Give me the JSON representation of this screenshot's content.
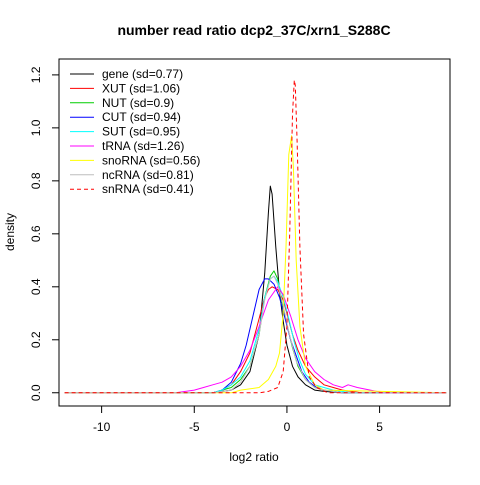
{
  "chart_data": {
    "type": "line",
    "title": "number read ratio dcp2_37C/xrn1_S288C",
    "xlabel": "log2 ratio",
    "ylabel": "density",
    "xlim": [
      -12.3,
      8.8
    ],
    "ylim": [
      -0.05,
      1.26
    ],
    "x_ticks": [
      -10,
      -5,
      0,
      5
    ],
    "x_tick_labels": [
      "-10",
      "-5",
      "0",
      "5"
    ],
    "y_ticks": [
      0.0,
      0.2,
      0.4,
      0.6,
      0.8,
      1.0,
      1.2
    ],
    "y_tick_labels": [
      "0.0",
      "0.2",
      "0.4",
      "0.6",
      "0.8",
      "1.0",
      "1.2"
    ],
    "grid": false,
    "legend_position": "top-left",
    "series": [
      {
        "name": "gene (sd=0.77)",
        "color": "#000000",
        "dash": "solid",
        "x": [
          -12,
          -4,
          -3,
          -2.5,
          -2,
          -1.5,
          -1.2,
          -1.0,
          -0.9,
          -0.8,
          -0.6,
          -0.4,
          -0.2,
          0.0,
          0.3,
          0.6,
          1.0,
          1.5,
          2.0,
          3,
          4,
          8.6
        ],
        "y": [
          0,
          0,
          0.01,
          0.03,
          0.08,
          0.22,
          0.45,
          0.68,
          0.78,
          0.75,
          0.55,
          0.38,
          0.27,
          0.18,
          0.1,
          0.06,
          0.03,
          0.01,
          0.005,
          0,
          0,
          0
        ]
      },
      {
        "name": "XUT (sd=1.06)",
        "color": "#ff0000",
        "dash": "solid",
        "x": [
          -12,
          -4,
          -3.5,
          -3,
          -2.5,
          -2,
          -1.5,
          -1.2,
          -1.0,
          -0.8,
          -0.5,
          -0.2,
          0.0,
          0.3,
          0.6,
          1.0,
          1.5,
          2.0,
          2.5,
          3.0,
          4,
          8.6
        ],
        "y": [
          0,
          0,
          0.01,
          0.03,
          0.08,
          0.15,
          0.28,
          0.36,
          0.39,
          0.4,
          0.39,
          0.35,
          0.3,
          0.22,
          0.16,
          0.1,
          0.06,
          0.03,
          0.02,
          0.01,
          0,
          0
        ]
      },
      {
        "name": "NUT (sd=0.9)",
        "color": "#00cd00",
        "dash": "solid",
        "x": [
          -12,
          -4,
          -3.5,
          -3,
          -2.5,
          -2,
          -1.5,
          -1.2,
          -0.9,
          -0.7,
          -0.5,
          -0.3,
          0.0,
          0.3,
          0.6,
          1.0,
          1.5,
          2.0,
          3,
          8.6
        ],
        "y": [
          0,
          0,
          0.01,
          0.02,
          0.05,
          0.1,
          0.22,
          0.36,
          0.44,
          0.46,
          0.43,
          0.35,
          0.26,
          0.17,
          0.1,
          0.05,
          0.02,
          0.01,
          0,
          0
        ]
      },
      {
        "name": "CUT (sd=0.94)",
        "color": "#0000ff",
        "dash": "solid",
        "x": [
          -12,
          -4,
          -3.5,
          -3,
          -2.5,
          -2.2,
          -1.8,
          -1.5,
          -1.2,
          -1.0,
          -0.7,
          -0.4,
          -0.1,
          0.2,
          0.5,
          0.8,
          1.2,
          1.6,
          2.0,
          3,
          8.6
        ],
        "y": [
          0,
          0,
          0.01,
          0.04,
          0.11,
          0.18,
          0.3,
          0.39,
          0.43,
          0.43,
          0.41,
          0.36,
          0.28,
          0.2,
          0.14,
          0.08,
          0.04,
          0.02,
          0.01,
          0,
          0
        ]
      },
      {
        "name": "SUT (sd=0.95)",
        "color": "#00ffff",
        "dash": "solid",
        "x": [
          -12,
          -4,
          -3.5,
          -3,
          -2.5,
          -2,
          -1.5,
          -1.2,
          -0.9,
          -0.7,
          -0.5,
          -0.2,
          0.1,
          0.4,
          0.7,
          1.0,
          1.5,
          2.0,
          2.5,
          3.5,
          8.6
        ],
        "y": [
          0,
          0,
          0.01,
          0.03,
          0.06,
          0.12,
          0.24,
          0.36,
          0.43,
          0.44,
          0.42,
          0.36,
          0.28,
          0.19,
          0.12,
          0.07,
          0.03,
          0.02,
          0.01,
          0,
          0
        ]
      },
      {
        "name": "tRNA (sd=1.26)",
        "color": "#ff00ff",
        "dash": "solid",
        "x": [
          -12,
          -6,
          -5,
          -4.5,
          -4,
          -3.5,
          -3,
          -2.5,
          -2,
          -1.5,
          -1.0,
          -0.5,
          -0.2,
          0.2,
          0.6,
          1.0,
          1.5,
          2.0,
          2.5,
          3.0,
          3.3,
          3.8,
          4.5,
          5.2,
          8.6
        ],
        "y": [
          0,
          0,
          0.01,
          0.02,
          0.03,
          0.04,
          0.06,
          0.1,
          0.16,
          0.25,
          0.35,
          0.4,
          0.37,
          0.29,
          0.2,
          0.13,
          0.08,
          0.05,
          0.03,
          0.02,
          0.03,
          0.02,
          0.01,
          0,
          0
        ]
      },
      {
        "name": "snoRNA (sd=0.56)",
        "color": "#ffff00",
        "dash": "solid",
        "x": [
          -12,
          -3,
          -2.5,
          -1.5,
          -1.0,
          -0.6,
          -0.4,
          -0.2,
          -0.05,
          0.1,
          0.25,
          0.35,
          0.5,
          0.7,
          1.0,
          1.5,
          2.0,
          8.6
        ],
        "y": [
          0,
          0,
          0.01,
          0.02,
          0.05,
          0.1,
          0.15,
          0.3,
          0.55,
          0.9,
          0.97,
          0.85,
          0.5,
          0.25,
          0.1,
          0.03,
          0.01,
          0
        ]
      },
      {
        "name": "ncRNA (sd=0.81)",
        "color": "#bebebe",
        "dash": "solid",
        "x": [
          -12,
          -4,
          -3,
          -2.5,
          -2,
          -1.5,
          -1.2,
          -0.9,
          -0.7,
          -0.5,
          -0.2,
          0.1,
          0.5,
          1.0,
          1.5,
          2.0,
          3,
          8.6
        ],
        "y": [
          0,
          0,
          0.01,
          0.04,
          0.1,
          0.22,
          0.35,
          0.43,
          0.44,
          0.41,
          0.33,
          0.23,
          0.12,
          0.05,
          0.02,
          0.01,
          0,
          0
        ]
      },
      {
        "name": "snRNA (sd=0.41)",
        "color": "#ff0000",
        "dash": "dashed",
        "x": [
          -12,
          -1.5,
          -1.0,
          -0.5,
          -0.2,
          0.0,
          0.15,
          0.3,
          0.4,
          0.45,
          0.55,
          0.7,
          0.9,
          1.2,
          1.6,
          2.2,
          8.6
        ],
        "y": [
          0,
          0,
          0.005,
          0.02,
          0.08,
          0.25,
          0.6,
          1.05,
          1.18,
          1.16,
          0.95,
          0.55,
          0.22,
          0.06,
          0.02,
          0,
          0
        ]
      }
    ]
  }
}
